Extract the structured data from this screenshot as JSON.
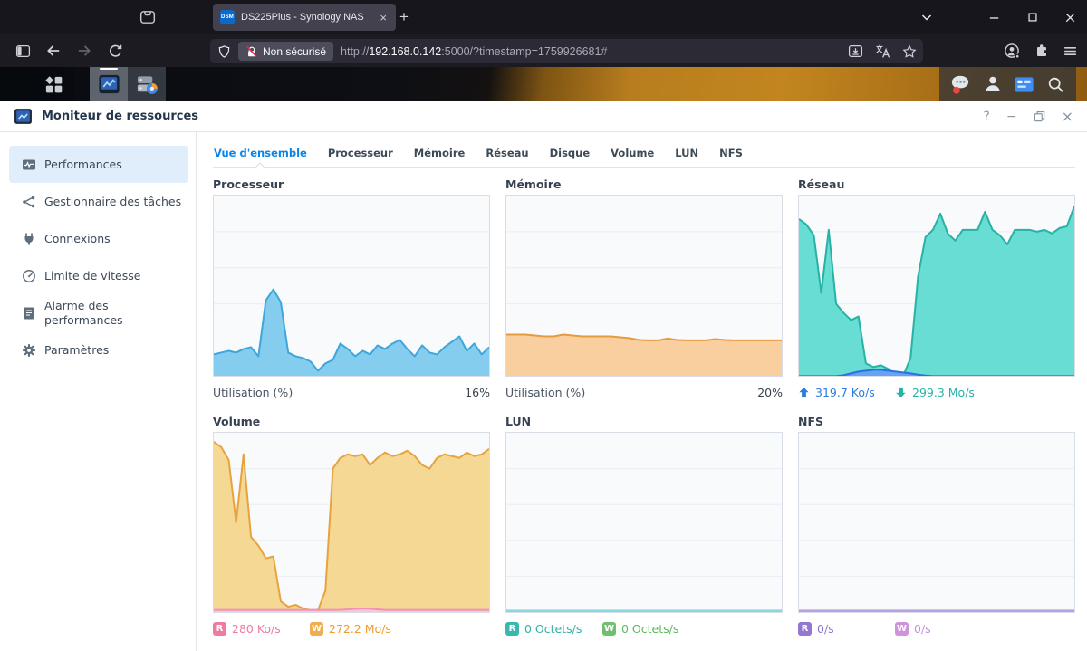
{
  "browser": {
    "firefox_view_icon": "firefox-view-icon",
    "tab": {
      "favicon_icon": "dsm-favicon",
      "favicon_text": "DSM",
      "title": "DS225Plus - Synology NAS",
      "close_glyph": "×"
    },
    "new_tab_glyph": "+",
    "nav_icons": [
      "sidebar-toggle-icon",
      "back-icon",
      "forward-icon",
      "reload-icon"
    ],
    "toolbar": {
      "security_chip": "Non sécurisé",
      "url": {
        "scheme": "http://",
        "host": "192.168.0.142",
        "path": ":5000/?timestamp=1759926681#"
      },
      "urlbar_icons": [
        "shield-icon",
        "insecure-lock-icon",
        "download-icon",
        "translate-icon",
        "bookmark-star-icon"
      ],
      "right_icons": [
        "account-icon",
        "extensions-icon",
        "menu-icon"
      ]
    },
    "window_control_icons": [
      "tabs-chevron-icon",
      "minimize-icon",
      "maximize-icon",
      "close-icon"
    ]
  },
  "dsm_taskbar": {
    "main_menu_icon": "main-menu-icon",
    "apps": [
      {
        "name": "resource-monitor",
        "icon": "resource-monitor-app-icon",
        "active": true
      },
      {
        "name": "storage-manager",
        "icon": "storage-manager-app-icon",
        "active": false
      }
    ],
    "right_icons": [
      "chat-icon",
      "user-icon",
      "widgets-icon",
      "search-icon"
    ]
  },
  "window": {
    "app_icon": "resource-monitor-window-icon",
    "title": "Moniteur de ressources",
    "controls": {
      "help": "?",
      "minimize": "−",
      "restore_icon": "restore-icon",
      "close": "×"
    }
  },
  "sidebar": {
    "items": [
      {
        "label": "Performances",
        "icon": "performance-icon",
        "active": true
      },
      {
        "label": "Gestionnaire des tâches",
        "icon": "task-manager-icon",
        "active": false
      },
      {
        "label": "Connexions",
        "icon": "connections-icon",
        "active": false
      },
      {
        "label": "Limite de vitesse",
        "icon": "speed-limit-icon",
        "active": false
      },
      {
        "label": "Alarme des performances",
        "icon": "performance-alarm-icon",
        "active": false
      },
      {
        "label": "Paramètres",
        "icon": "settings-icon",
        "active": false
      }
    ]
  },
  "tabs": {
    "items": [
      "Vue d'ensemble",
      "Processeur",
      "Mémoire",
      "Réseau",
      "Disque",
      "Volume",
      "LUN",
      "NFS"
    ],
    "active_index": 0
  },
  "colors": {
    "accent_blue": "#0a85e9",
    "active_sidebar_bg": "#e0edfb",
    "chart_bg": "#f8fafc",
    "chart_border": "#d7dee5",
    "gridline": "#e9eef3"
  },
  "chart_data": [
    {
      "type": "area",
      "title": "Processeur",
      "ylim": [
        0,
        100
      ],
      "grid_inner_lines": 4,
      "legend_position": "bottom",
      "series": [
        {
          "name": "utilisation",
          "stroke": "#3ea6db",
          "fill": "#85cdee",
          "values": [
            12,
            13,
            14,
            13,
            15,
            16,
            11,
            42,
            48,
            41,
            13,
            11,
            10,
            8,
            3,
            7,
            9,
            18,
            15,
            11,
            14,
            12,
            17,
            15,
            18,
            20,
            15,
            11,
            17,
            13,
            12,
            16,
            19,
            22,
            14,
            18,
            12,
            16
          ]
        }
      ],
      "legend": {
        "type": "label-value",
        "label": "Utilisation  (%)",
        "value": "16%"
      }
    },
    {
      "type": "area",
      "title": "Mémoire",
      "ylim": [
        0,
        100
      ],
      "grid_inner_lines": 4,
      "legend_position": "bottom",
      "series": [
        {
          "name": "utilisation",
          "stroke": "#e79b3f",
          "fill": "#f9cfa0",
          "values": [
            23,
            23,
            23,
            22.5,
            22,
            22,
            23,
            22.5,
            22,
            22,
            22,
            22,
            21.5,
            21,
            20,
            19.8,
            19.8,
            20.8,
            20,
            19.8,
            19.8,
            19.8,
            20.5,
            20,
            19.8,
            19.8,
            19.8,
            19.8,
            19.8,
            19.8
          ]
        }
      ],
      "legend": {
        "type": "label-value",
        "label": "Utilisation  (%)",
        "value": "20%"
      }
    },
    {
      "type": "area",
      "title": "Réseau",
      "ylim": [
        0,
        100
      ],
      "grid_inner_lines": 4,
      "legend_position": "bottom",
      "series": [
        {
          "name": "download",
          "stroke": "#28b1a5",
          "fill": "#67ddd3",
          "values": [
            87,
            84,
            78,
            46,
            81,
            40,
            35,
            31,
            33,
            7,
            5,
            6,
            4,
            1,
            0,
            10,
            55,
            77,
            81,
            90,
            79,
            75,
            81,
            81,
            81,
            91,
            81,
            78,
            73,
            81,
            81,
            81,
            80,
            81,
            79,
            82,
            83,
            94
          ]
        },
        {
          "name": "upload",
          "stroke": "#2e6fe0",
          "fill": "#66a3f2",
          "values": [
            0,
            0,
            0,
            0,
            0,
            0,
            0.5,
            1.5,
            2.5,
            3,
            3.5,
            3.5,
            3,
            2.5,
            2,
            1.5,
            0.8,
            0.3,
            0,
            0,
            0,
            0,
            0,
            0,
            0,
            0,
            0,
            0,
            0,
            0,
            0,
            0,
            0,
            0,
            0,
            0,
            0,
            0
          ]
        }
      ],
      "legend": {
        "type": "entries",
        "entries": [
          {
            "marker": "arrow-up-icon",
            "color": "#2a7de1",
            "value": "319.7 Ko/s"
          },
          {
            "marker": "arrow-down-icon",
            "color": "#26b3a7",
            "value": "299.3 Mo/s"
          }
        ]
      }
    },
    {
      "type": "area",
      "title": "Volume",
      "ylim": [
        0,
        100
      ],
      "grid_inner_lines": 4,
      "legend_position": "bottom",
      "series": [
        {
          "name": "write",
          "stroke": "#e7a33d",
          "fill": "#f4d894",
          "values": [
            95,
            92,
            85,
            50,
            88,
            42,
            37,
            30,
            31,
            6,
            3,
            4,
            2,
            1,
            1,
            12,
            80,
            86,
            88,
            87,
            88,
            82,
            86,
            89,
            87,
            88,
            90,
            87,
            82,
            80,
            86,
            88,
            87,
            86,
            89,
            87,
            88,
            91
          ]
        },
        {
          "name": "read",
          "stroke": "#f291b1",
          "fill": "#f8c6d8",
          "values": [
            1.2,
            1.2,
            1.2,
            1.2,
            1.2,
            1.2,
            1.2,
            1.2,
            1.2,
            1.2,
            1.2,
            1.2,
            1.2,
            1.2,
            1.2,
            1.2,
            1.2,
            1.2,
            1.5,
            1.8,
            2,
            1.8,
            1.5,
            1.2,
            1.2,
            1.2,
            1.2,
            1.2,
            1.2,
            1.2,
            1.2,
            1.2,
            1.2,
            1.2,
            1.2,
            1.2,
            1.2,
            1.2
          ]
        }
      ],
      "legend": {
        "type": "entries",
        "entries": [
          {
            "marker": "badge",
            "badge": "R",
            "badge_bg": "#ed7d9e",
            "color": "#ed7d9e",
            "value": "280 Ko/s"
          },
          {
            "marker": "badge",
            "badge": "W",
            "badge_bg": "#f0ad4e",
            "color": "#ef9c31",
            "value": "272.2 Mo/s"
          }
        ]
      }
    },
    {
      "type": "area",
      "title": "LUN",
      "ylim": [
        0,
        100
      ],
      "grid_inner_lines": 4,
      "legend_position": "bottom",
      "series": [
        {
          "name": "write",
          "stroke": "#8fd598",
          "fill": "#8fd598",
          "values": [
            0.4,
            0.4
          ]
        },
        {
          "name": "read",
          "stroke": "#86d9de",
          "fill": "#86d9de",
          "values": [
            0.8,
            0.8
          ]
        }
      ],
      "legend": {
        "type": "entries",
        "entries": [
          {
            "marker": "badge",
            "badge": "R",
            "badge_bg": "#39b8ae",
            "color": "#2fb3a8",
            "value": "0 Octets/s"
          },
          {
            "marker": "badge",
            "badge": "W",
            "badge_bg": "#6fbf6f",
            "color": "#5cb85c",
            "value": "0 Octets/s"
          }
        ]
      }
    },
    {
      "type": "area",
      "title": "NFS",
      "ylim": [
        0,
        100
      ],
      "grid_inner_lines": 4,
      "legend_position": "bottom",
      "series": [
        {
          "name": "write",
          "stroke": "#dcb7e8",
          "fill": "#dcb7e8",
          "values": [
            0.4,
            0.4
          ]
        },
        {
          "name": "read",
          "stroke": "#b9a1e3",
          "fill": "#b9a1e3",
          "values": [
            0.8,
            0.8
          ]
        }
      ],
      "legend": {
        "type": "entries",
        "entries": [
          {
            "marker": "badge",
            "badge": "R",
            "badge_bg": "#9478cf",
            "color": "#8f76cc",
            "value": "0/s"
          },
          {
            "marker": "badge",
            "badge": "W",
            "badge_bg": "#cf93dd",
            "color": "#c98fdb",
            "value": "0/s"
          }
        ]
      }
    }
  ]
}
